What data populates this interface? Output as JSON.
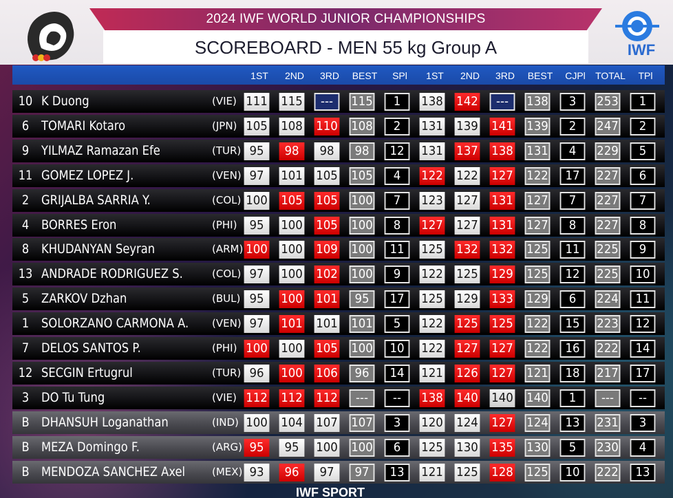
{
  "header": {
    "event_title": "2024 IWF WORLD JUNIOR CHAMPIONSHIPS",
    "board_title": "SCOREBOARD - MEN 55 kg Group A",
    "right_logo_text": "IWF"
  },
  "columns": [
    "1ST",
    "2ND",
    "3RD",
    "BEST",
    "SPl",
    "1ST",
    "2ND",
    "3RD",
    "BEST",
    "CJPl",
    "TOTAL",
    "TPl"
  ],
  "rows": [
    {
      "lot": "10",
      "name": "K Duong",
      "nation": "(VIE)",
      "reserve": false,
      "values": [
        "111",
        "115",
        "---",
        "115",
        "1",
        "138",
        "142",
        "---",
        "138",
        "3",
        "253",
        "1"
      ],
      "states": [
        "good",
        "good",
        "next",
        "best",
        "place",
        "good",
        "fail",
        "next",
        "best",
        "place",
        "best",
        "place"
      ]
    },
    {
      "lot": "6",
      "name": "TOMARI Kotaro",
      "nation": "(JPN)",
      "reserve": false,
      "values": [
        "105",
        "108",
        "110",
        "108",
        "2",
        "131",
        "139",
        "141",
        "139",
        "2",
        "247",
        "2"
      ],
      "states": [
        "good",
        "good",
        "fail",
        "best",
        "place",
        "good",
        "good",
        "fail",
        "best",
        "place",
        "best",
        "place"
      ]
    },
    {
      "lot": "9",
      "name": "YILMAZ Ramazan Efe",
      "nation": "(TUR)",
      "reserve": false,
      "values": [
        "95",
        "98",
        "98",
        "98",
        "12",
        "131",
        "137",
        "138",
        "131",
        "4",
        "229",
        "5"
      ],
      "states": [
        "good",
        "fail",
        "good",
        "best",
        "place",
        "good",
        "fail",
        "fail",
        "best",
        "place",
        "best",
        "place"
      ]
    },
    {
      "lot": "11",
      "name": "GOMEZ LOPEZ J.",
      "nation": "(VEN)",
      "reserve": false,
      "values": [
        "97",
        "101",
        "105",
        "105",
        "4",
        "122",
        "122",
        "127",
        "122",
        "17",
        "227",
        "6"
      ],
      "states": [
        "good",
        "good",
        "good",
        "best",
        "place",
        "fail",
        "good",
        "fail",
        "best",
        "place",
        "best",
        "place"
      ]
    },
    {
      "lot": "2",
      "name": "GRIJALBA SARRIA Y.",
      "nation": "(COL)",
      "reserve": false,
      "values": [
        "100",
        "105",
        "105",
        "100",
        "7",
        "123",
        "127",
        "131",
        "127",
        "7",
        "227",
        "7"
      ],
      "states": [
        "good",
        "fail",
        "fail",
        "best",
        "place",
        "good",
        "good",
        "fail",
        "best",
        "place",
        "best",
        "place"
      ]
    },
    {
      "lot": "4",
      "name": "BORRES Eron",
      "nation": "(PHI)",
      "reserve": false,
      "values": [
        "95",
        "100",
        "105",
        "100",
        "8",
        "127",
        "127",
        "131",
        "127",
        "8",
        "227",
        "8"
      ],
      "states": [
        "good",
        "good",
        "fail",
        "best",
        "place",
        "fail",
        "good",
        "fail",
        "best",
        "place",
        "best",
        "place"
      ]
    },
    {
      "lot": "8",
      "name": "KHUDANYAN Seyran",
      "nation": "(ARM)",
      "reserve": false,
      "values": [
        "100",
        "100",
        "109",
        "100",
        "11",
        "125",
        "132",
        "132",
        "125",
        "11",
        "225",
        "9"
      ],
      "states": [
        "fail",
        "good",
        "fail",
        "best",
        "place",
        "good",
        "fail",
        "fail",
        "best",
        "place",
        "best",
        "place"
      ]
    },
    {
      "lot": "13",
      "name": "ANDRADE RODRIGUEZ S.",
      "nation": "(COL)",
      "reserve": false,
      "values": [
        "97",
        "100",
        "102",
        "100",
        "9",
        "122",
        "125",
        "129",
        "125",
        "12",
        "225",
        "10"
      ],
      "states": [
        "good",
        "good",
        "fail",
        "best",
        "place",
        "good",
        "good",
        "fail",
        "best",
        "place",
        "best",
        "place"
      ]
    },
    {
      "lot": "5",
      "name": "ZARKOV Dzhan",
      "nation": "(BUL)",
      "reserve": false,
      "values": [
        "95",
        "100",
        "101",
        "95",
        "17",
        "125",
        "129",
        "133",
        "129",
        "6",
        "224",
        "11"
      ],
      "states": [
        "good",
        "fail",
        "fail",
        "best",
        "place",
        "good",
        "good",
        "fail",
        "best",
        "place",
        "best",
        "place"
      ]
    },
    {
      "lot": "1",
      "name": "SOLORZANO CARMONA A.",
      "nation": "(VEN)",
      "reserve": false,
      "values": [
        "97",
        "101",
        "101",
        "101",
        "5",
        "122",
        "125",
        "125",
        "122",
        "15",
        "223",
        "12"
      ],
      "states": [
        "good",
        "fail",
        "good",
        "best",
        "place",
        "good",
        "fail",
        "fail",
        "best",
        "place",
        "best",
        "place"
      ]
    },
    {
      "lot": "7",
      "name": "DELOS SANTOS P.",
      "nation": "(PHI)",
      "reserve": false,
      "values": [
        "100",
        "100",
        "105",
        "100",
        "10",
        "122",
        "127",
        "127",
        "122",
        "16",
        "222",
        "14"
      ],
      "states": [
        "fail",
        "good",
        "fail",
        "best",
        "place",
        "good",
        "fail",
        "fail",
        "best",
        "place",
        "best",
        "place"
      ]
    },
    {
      "lot": "12",
      "name": "SECGIN Ertugrul",
      "nation": "(TUR)",
      "reserve": false,
      "values": [
        "96",
        "100",
        "106",
        "96",
        "14",
        "121",
        "126",
        "127",
        "121",
        "18",
        "217",
        "17"
      ],
      "states": [
        "good",
        "fail",
        "fail",
        "best",
        "place",
        "good",
        "fail",
        "fail",
        "best",
        "place",
        "best",
        "place"
      ]
    },
    {
      "lot": "3",
      "name": "DO Tu Tung",
      "nation": "(VIE)",
      "reserve": false,
      "values": [
        "112",
        "112",
        "112",
        "---",
        "--",
        "138",
        "140",
        "140",
        "140",
        "1",
        "---",
        "--"
      ],
      "states": [
        "fail",
        "fail",
        "fail",
        "best",
        "place",
        "fail",
        "fail",
        "pending",
        "best",
        "place",
        "best",
        "place"
      ]
    },
    {
      "lot": "B",
      "name": "DHANSUH Loganathan",
      "nation": "(IND)",
      "reserve": true,
      "values": [
        "100",
        "104",
        "107",
        "107",
        "3",
        "120",
        "124",
        "127",
        "124",
        "13",
        "231",
        "3"
      ],
      "states": [
        "good",
        "good",
        "good",
        "best",
        "place",
        "good",
        "good",
        "fail",
        "best",
        "place",
        "best",
        "place"
      ]
    },
    {
      "lot": "B",
      "name": "MEZA Domingo F.",
      "nation": "(ARG)",
      "reserve": true,
      "values": [
        "95",
        "95",
        "100",
        "100",
        "6",
        "125",
        "130",
        "135",
        "130",
        "5",
        "230",
        "4"
      ],
      "states": [
        "fail",
        "good",
        "good",
        "best",
        "place",
        "good",
        "good",
        "fail",
        "best",
        "place",
        "best",
        "place"
      ]
    },
    {
      "lot": "B",
      "name": "MENDOZA SANCHEZ Axel",
      "nation": "(MEX)",
      "reserve": true,
      "values": [
        "93",
        "96",
        "97",
        "97",
        "13",
        "121",
        "125",
        "128",
        "125",
        "10",
        "222",
        "13"
      ],
      "states": [
        "good",
        "fail",
        "good",
        "best",
        "place",
        "good",
        "good",
        "fail",
        "best",
        "place",
        "best",
        "place"
      ]
    }
  ],
  "footer": {
    "text": "IWF SPORT"
  }
}
